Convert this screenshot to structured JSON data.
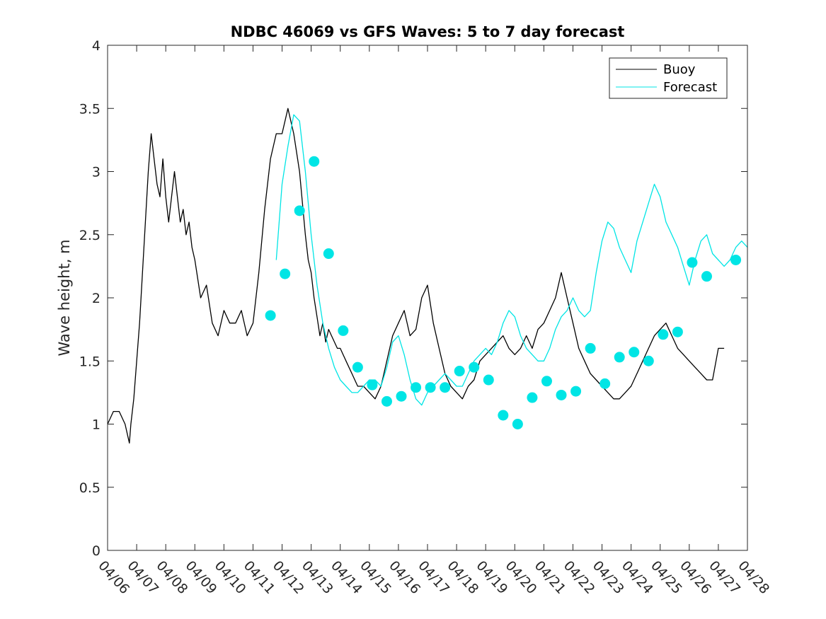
{
  "chart_data": {
    "type": "line",
    "title": "NDBC 46069 vs GFS Waves: 5 to 7 day forecast",
    "xlabel": "",
    "ylabel": "Wave height, m",
    "x_ticks": [
      "04/06",
      "04/07",
      "04/08",
      "04/09",
      "04/10",
      "04/11",
      "04/12",
      "04/13",
      "04/14",
      "04/15",
      "04/16",
      "04/17",
      "04/18",
      "04/19",
      "04/20",
      "04/21",
      "04/22",
      "04/23",
      "04/24",
      "04/25",
      "04/26",
      "04/27",
      "04/28"
    ],
    "xlim_days": [
      0,
      22
    ],
    "ylim": [
      0,
      4
    ],
    "y_ticks": [
      "0",
      "0.5",
      "1",
      "1.5",
      "2",
      "2.5",
      "3",
      "3.5",
      "4"
    ],
    "grid": false,
    "legend_position": "top-right",
    "colors": {
      "buoy": "#000000",
      "forecast": "#00e5e5",
      "markers": "#00e5e5"
    },
    "series": [
      {
        "name": "Buoy",
        "x_days": [
          0,
          0.2,
          0.4,
          0.6,
          0.75,
          0.8,
          0.9,
          1.0,
          1.1,
          1.2,
          1.3,
          1.4,
          1.5,
          1.6,
          1.7,
          1.8,
          1.9,
          2.0,
          2.1,
          2.2,
          2.3,
          2.4,
          2.5,
          2.6,
          2.7,
          2.8,
          2.9,
          3.0,
          3.2,
          3.4,
          3.6,
          3.8,
          4.0,
          4.2,
          4.4,
          4.6,
          4.8,
          5.0,
          5.2,
          5.4,
          5.6,
          5.8,
          6.0,
          6.2,
          6.4,
          6.6,
          6.8,
          6.9,
          7.0,
          7.1,
          7.2,
          7.3,
          7.4,
          7.5,
          7.6,
          7.7,
          7.8,
          7.9,
          8.0,
          8.2,
          8.4,
          8.6,
          8.8,
          9.0,
          9.2,
          9.4,
          9.6,
          9.8,
          10.0,
          10.2,
          10.4,
          10.6,
          10.8,
          11.0,
          11.2,
          11.4,
          11.6,
          11.8,
          12.0,
          12.2,
          12.4,
          12.6,
          12.8,
          13.0,
          13.2,
          13.4,
          13.6,
          13.8,
          14.0,
          14.2,
          14.4,
          14.6,
          14.8,
          15.0,
          15.2,
          15.4,
          15.6,
          15.8,
          16.0,
          16.2,
          16.4,
          16.6,
          16.8,
          17.0,
          17.2,
          17.4,
          17.6,
          17.8,
          18.0,
          18.2,
          18.4,
          18.6,
          18.8,
          19.0,
          19.2,
          19.4,
          19.6,
          19.8,
          20.0,
          20.2,
          20.4,
          20.6,
          20.8,
          21.0,
          21.2
        ],
        "values": [
          1.0,
          1.1,
          1.1,
          1.0,
          0.85,
          1.0,
          1.2,
          1.5,
          1.8,
          2.2,
          2.6,
          3.0,
          3.3,
          3.1,
          2.9,
          2.8,
          3.1,
          2.8,
          2.6,
          2.8,
          3.0,
          2.8,
          2.6,
          2.7,
          2.5,
          2.6,
          2.4,
          2.3,
          2.0,
          2.1,
          1.8,
          1.7,
          1.9,
          1.8,
          1.8,
          1.9,
          1.7,
          1.8,
          2.2,
          2.7,
          3.1,
          3.3,
          3.3,
          3.5,
          3.3,
          3.0,
          2.5,
          2.3,
          2.2,
          2.0,
          1.85,
          1.7,
          1.8,
          1.65,
          1.75,
          1.7,
          1.65,
          1.6,
          1.6,
          1.5,
          1.4,
          1.3,
          1.3,
          1.25,
          1.2,
          1.3,
          1.5,
          1.7,
          1.8,
          1.9,
          1.7,
          1.75,
          2.0,
          2.1,
          1.8,
          1.6,
          1.4,
          1.3,
          1.25,
          1.2,
          1.3,
          1.35,
          1.5,
          1.55,
          1.6,
          1.65,
          1.7,
          1.6,
          1.55,
          1.6,
          1.7,
          1.6,
          1.75,
          1.8,
          1.9,
          2.0,
          2.2,
          2.0,
          1.8,
          1.6,
          1.5,
          1.4,
          1.35,
          1.3,
          1.25,
          1.2,
          1.2,
          1.25,
          1.3,
          1.4,
          1.5,
          1.6,
          1.7,
          1.75,
          1.8,
          1.7,
          1.6,
          1.55,
          1.5,
          1.45,
          1.4,
          1.35,
          1.35,
          1.6,
          1.6
        ]
      },
      {
        "name": "Forecast",
        "x_days": [
          5.8,
          6.0,
          6.2,
          6.4,
          6.6,
          6.8,
          7.0,
          7.2,
          7.4,
          7.6,
          7.8,
          8.0,
          8.2,
          8.4,
          8.6,
          8.8,
          9.0,
          9.2,
          9.4,
          9.6,
          9.8,
          10.0,
          10.2,
          10.4,
          10.6,
          10.8,
          11.0,
          11.2,
          11.4,
          11.6,
          11.8,
          12.0,
          12.2,
          12.4,
          12.6,
          12.8,
          13.0,
          13.2,
          13.4,
          13.6,
          13.8,
          14.0,
          14.2,
          14.4,
          14.6,
          14.8,
          15.0,
          15.2,
          15.4,
          15.6,
          15.8,
          16.0,
          16.2,
          16.4,
          16.6,
          16.8,
          17.0,
          17.2,
          17.4,
          17.6,
          17.8,
          18.0,
          18.2,
          18.4,
          18.6,
          18.8,
          19.0,
          19.2,
          19.4,
          19.6,
          19.8,
          20.0,
          20.2,
          20.4,
          20.6,
          20.8,
          21.0,
          21.2,
          21.4,
          21.6,
          21.8,
          22.0
        ],
        "values": [
          2.3,
          2.9,
          3.2,
          3.45,
          3.4,
          3.0,
          2.5,
          2.1,
          1.8,
          1.6,
          1.45,
          1.35,
          1.3,
          1.25,
          1.25,
          1.3,
          1.35,
          1.35,
          1.3,
          1.45,
          1.65,
          1.7,
          1.55,
          1.35,
          1.2,
          1.15,
          1.25,
          1.3,
          1.35,
          1.4,
          1.35,
          1.3,
          1.3,
          1.4,
          1.5,
          1.55,
          1.6,
          1.55,
          1.65,
          1.8,
          1.9,
          1.85,
          1.7,
          1.6,
          1.55,
          1.5,
          1.5,
          1.6,
          1.75,
          1.85,
          1.9,
          2.0,
          1.9,
          1.85,
          1.9,
          2.2,
          2.45,
          2.6,
          2.55,
          2.4,
          2.3,
          2.2,
          2.45,
          2.6,
          2.75,
          2.9,
          2.8,
          2.6,
          2.5,
          2.4,
          2.25,
          2.1,
          2.3,
          2.45,
          2.5,
          2.35,
          2.3,
          2.25,
          2.3,
          2.4,
          2.45,
          2.4
        ]
      }
    ],
    "markers": {
      "x_days": [
        5.6,
        6.1,
        6.6,
        7.1,
        7.6,
        8.1,
        8.6,
        9.1,
        9.6,
        10.1,
        10.6,
        11.1,
        11.6,
        12.1,
        12.6,
        13.1,
        13.6,
        14.1,
        14.6,
        15.1,
        15.6,
        16.1,
        16.6,
        17.1,
        17.6,
        18.1,
        18.6,
        19.1,
        19.6,
        20.1,
        20.6,
        21.6
      ],
      "values": [
        1.86,
        2.19,
        2.69,
        3.08,
        2.35,
        1.74,
        1.45,
        1.31,
        1.18,
        1.22,
        1.29,
        1.29,
        1.29,
        1.42,
        1.45,
        1.35,
        1.07,
        1.0,
        1.21,
        1.34,
        1.23,
        1.26,
        1.6,
        1.32,
        1.53,
        1.57,
        1.5,
        1.71,
        1.73,
        2.28,
        2.17,
        2.3
      ]
    }
  }
}
